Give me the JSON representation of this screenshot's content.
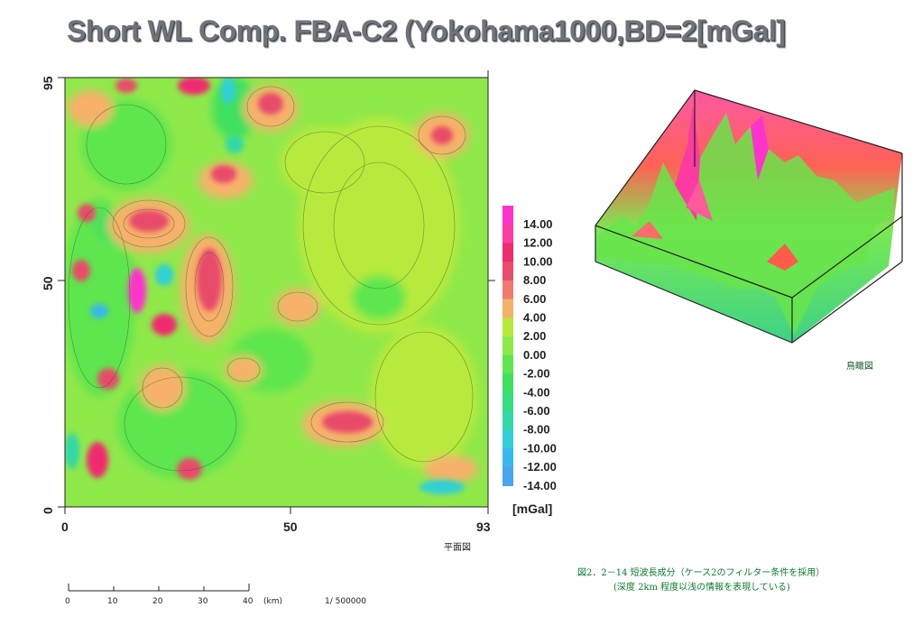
{
  "title": "Short WL Comp. FBA-C2 (Yokohama1000,BD=2[mGal]",
  "chart_data": [
    {
      "type": "heatmap",
      "title": "Short WL Comp. FBA-C2 (Yokohama1000,BD=2[mGal]",
      "xlim": [
        0,
        93
      ],
      "ylim": [
        0,
        95
      ],
      "x_ticks": [
        "0",
        "50",
        "93"
      ],
      "y_ticks": [
        "0",
        "50",
        "95"
      ],
      "unit": "[mGal]",
      "colorbar": {
        "labels": [
          "14.00",
          "12.00",
          "10.00",
          "8.00",
          "6.00",
          "4.00",
          "2.00",
          "0.00",
          "-2.00",
          "-4.00",
          "-6.00",
          "-8.00",
          "-10.00",
          "-12.00",
          "-14.00"
        ],
        "colors": [
          "#ff33cc",
          "#ff3aa0",
          "#f02a6e",
          "#e84b6a",
          "#f07a6e",
          "#f7b06a",
          "#b8e83a",
          "#8ee84a",
          "#5de64e",
          "#3fe060",
          "#33dd80",
          "#33d8a8",
          "#33cfd6",
          "#38b8ec",
          "#46a6f2"
        ]
      },
      "caption": "平面図",
      "contour_interval": 2
    },
    {
      "type": "surface-3d",
      "caption": "鳥瞰図"
    }
  ],
  "scale_bar": {
    "ticks": [
      "0",
      "10",
      "20",
      "30",
      "40"
    ],
    "unit": "(km)",
    "ratio": "1/ 500000"
  },
  "figure_caption": {
    "line1": "図2．2－14 短波長成分（ケース2のフィルター条件を採用）",
    "line2": "(深度 2km 程度以浅の情報を表現している)"
  }
}
